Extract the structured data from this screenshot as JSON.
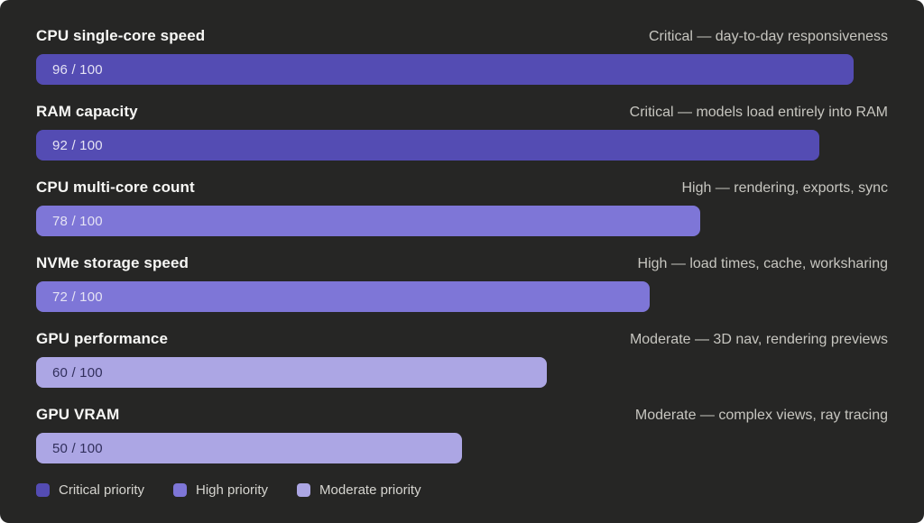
{
  "chart_data": {
    "type": "bar",
    "orientation": "horizontal",
    "max": 100,
    "grid": false,
    "background_color": "#262625",
    "priority_colors": {
      "critical": "#544CB3",
      "high": "#7E76D7",
      "moderate": "#ACA6E4"
    },
    "value_text_colors": {
      "light": "#E5E3F4",
      "dark": "#312F5C"
    },
    "items": [
      {
        "label": "CPU single-core speed",
        "value": 96,
        "display": "96 / 100",
        "priority": "critical",
        "note": "Critical — day-to-day responsiveness"
      },
      {
        "label": "RAM capacity",
        "value": 92,
        "display": "92 / 100",
        "priority": "critical",
        "note": "Critical — models load entirely into RAM"
      },
      {
        "label": "CPU multi-core count",
        "value": 78,
        "display": "78 / 100",
        "priority": "high",
        "note": "High — rendering, exports, sync"
      },
      {
        "label": "NVMe storage speed",
        "value": 72,
        "display": "72 / 100",
        "priority": "high",
        "note": "High — load times, cache, worksharing"
      },
      {
        "label": "GPU performance",
        "value": 60,
        "display": "60 / 100",
        "priority": "moderate",
        "note": "Moderate — 3D nav, rendering previews"
      },
      {
        "label": "GPU VRAM",
        "value": 50,
        "display": "50 / 100",
        "priority": "moderate",
        "note": "Moderate — complex views, ray tracing"
      }
    ],
    "legend": [
      {
        "label": "Critical priority",
        "priority": "critical"
      },
      {
        "label": "High priority",
        "priority": "high"
      },
      {
        "label": "Moderate priority",
        "priority": "moderate"
      }
    ]
  }
}
